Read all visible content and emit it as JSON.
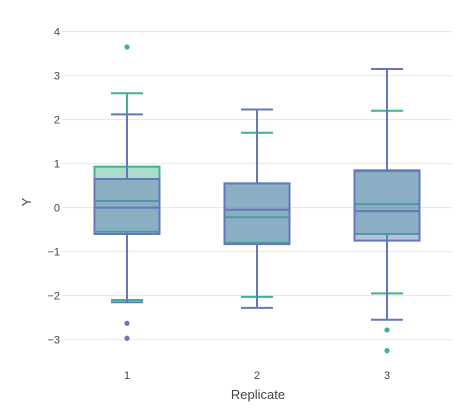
{
  "chart_data": {
    "type": "box",
    "xlabel": "Replicate",
    "ylabel": "Y",
    "categories": [
      "1",
      "2",
      "3"
    ],
    "ylim": [
      -3.35,
      4.15
    ],
    "yticks": [
      4,
      3,
      2,
      1,
      0,
      -1,
      -2,
      -3
    ],
    "ytick_labels": [
      "4",
      "3",
      "2",
      "1",
      "0",
      "−1",
      "−2",
      "−3"
    ],
    "grid": true,
    "legend": false,
    "colors": {
      "a": "#3fb48c",
      "b": "#6677bb"
    },
    "series": [
      {
        "color": "#3fb48c",
        "fill": "rgba(63,180,140,0.45)",
        "boxes": [
          {
            "category": "1",
            "q1": -0.55,
            "median": 0.15,
            "q3": 0.93,
            "lower_whisker": -2.1,
            "upper_whisker": 2.6,
            "outliers": [
              3.65
            ]
          },
          {
            "category": "2",
            "q1": -0.8,
            "median": -0.22,
            "q3": 0.55,
            "lower_whisker": -2.03,
            "upper_whisker": 1.7,
            "outliers": []
          },
          {
            "category": "3",
            "q1": -0.6,
            "median": 0.08,
            "q3": 0.85,
            "lower_whisker": -1.95,
            "upper_whisker": 2.2,
            "outliers": [
              -2.78,
              -3.25
            ]
          }
        ]
      },
      {
        "color": "#6677bb",
        "fill": "rgba(102,119,187,0.45)",
        "boxes": [
          {
            "category": "1",
            "q1": -0.6,
            "median": 0.0,
            "q3": 0.65,
            "lower_whisker": -2.15,
            "upper_whisker": 2.12,
            "outliers": [
              -2.63,
              -2.97
            ]
          },
          {
            "category": "2",
            "q1": -0.83,
            "median": -0.05,
            "q3": 0.55,
            "lower_whisker": -2.28,
            "upper_whisker": 2.23,
            "outliers": []
          },
          {
            "category": "3",
            "q1": -0.75,
            "median": -0.08,
            "q3": 0.83,
            "lower_whisker": -2.55,
            "upper_whisker": 3.15,
            "outliers": []
          }
        ]
      }
    ]
  }
}
